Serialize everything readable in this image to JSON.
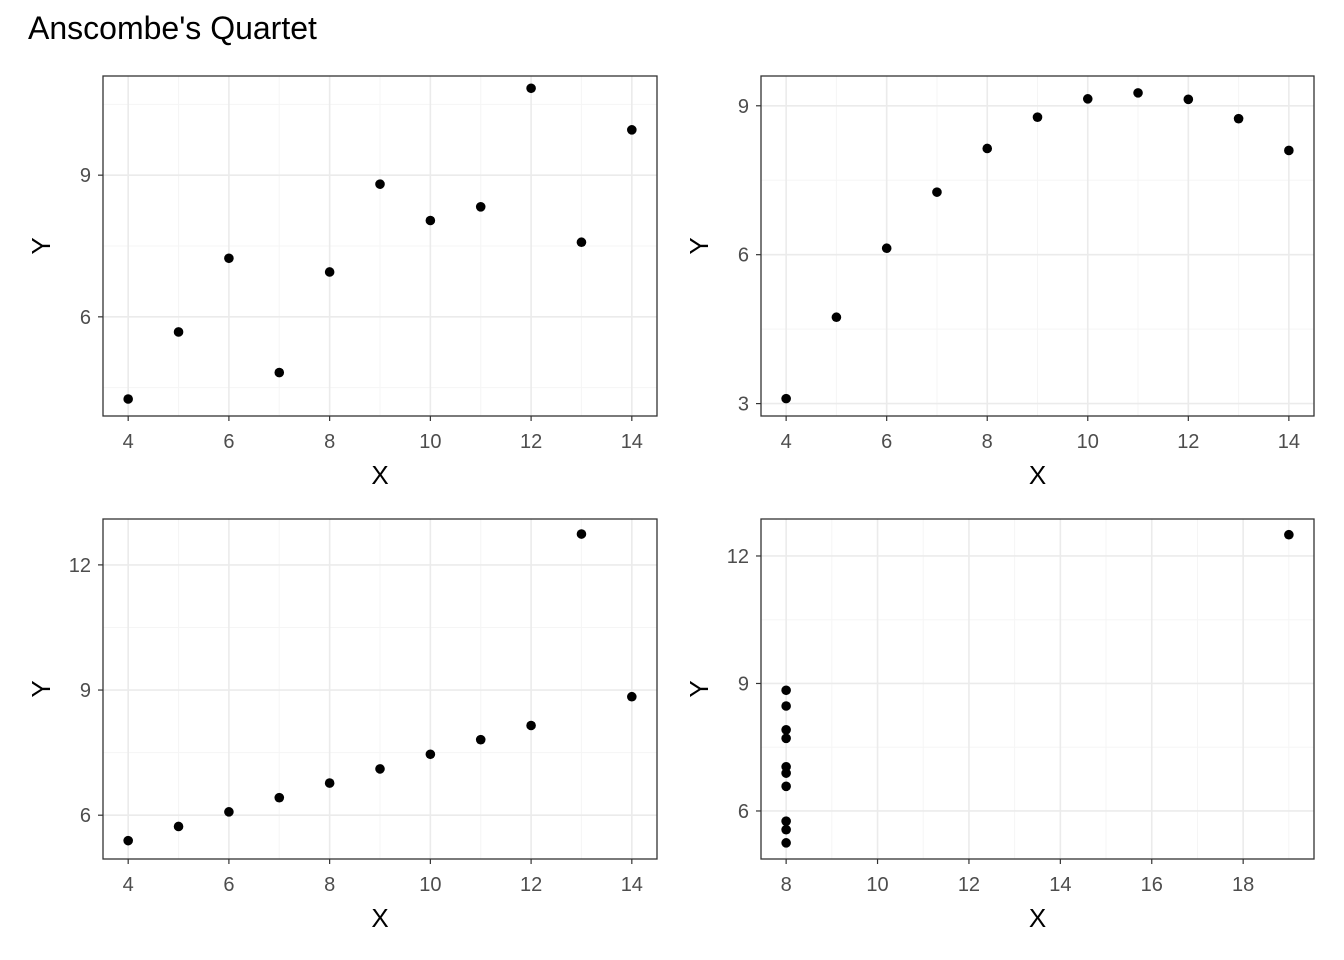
{
  "figure": {
    "title": "Anscombe's Quartet"
  },
  "colors": {
    "point": "#000000",
    "panel_border": "#333333",
    "grid_major": "#ebebeb",
    "grid_minor": "#f5f5f5",
    "tick_text": "#4d4d4d",
    "background": "#ffffff"
  },
  "chart_data": [
    {
      "type": "scatter",
      "title": "",
      "xlabel": "X",
      "ylabel": "Y",
      "xlim": [
        3.5,
        14.5
      ],
      "ylim": [
        3.9,
        11.1
      ],
      "xticks": [
        4,
        6,
        8,
        10,
        12,
        14
      ],
      "yticks": [
        6,
        9
      ],
      "grid": true,
      "x": [
        10,
        8,
        13,
        9,
        11,
        14,
        6,
        4,
        12,
        7,
        5
      ],
      "y": [
        8.04,
        6.95,
        7.58,
        8.81,
        8.33,
        9.96,
        7.24,
        4.26,
        10.84,
        4.82,
        5.68
      ]
    },
    {
      "type": "scatter",
      "title": "",
      "xlabel": "X",
      "ylabel": "Y",
      "xlim": [
        3.5,
        14.5
      ],
      "ylim": [
        2.75,
        9.6
      ],
      "xticks": [
        4,
        6,
        8,
        10,
        12,
        14
      ],
      "yticks": [
        3,
        6,
        9
      ],
      "grid": true,
      "x": [
        10,
        8,
        13,
        9,
        11,
        14,
        6,
        4,
        12,
        7,
        5
      ],
      "y": [
        9.14,
        8.14,
        8.74,
        8.77,
        9.26,
        8.1,
        6.13,
        3.1,
        9.13,
        7.26,
        4.74
      ]
    },
    {
      "type": "scatter",
      "title": "",
      "xlabel": "X",
      "ylabel": "Y",
      "xlim": [
        3.5,
        14.5
      ],
      "ylim": [
        4.95,
        13.1
      ],
      "xticks": [
        4,
        6,
        8,
        10,
        12,
        14
      ],
      "yticks": [
        6,
        9,
        12
      ],
      "grid": true,
      "x": [
        10,
        8,
        13,
        9,
        11,
        14,
        6,
        4,
        12,
        7,
        5
      ],
      "y": [
        7.46,
        6.77,
        12.74,
        7.11,
        7.81,
        8.84,
        6.08,
        5.39,
        8.15,
        6.42,
        5.73
      ]
    },
    {
      "type": "scatter",
      "title": "",
      "xlabel": "X",
      "ylabel": "Y",
      "xlim": [
        7.45,
        19.55
      ],
      "ylim": [
        4.87,
        12.87
      ],
      "xticks": [
        8,
        10,
        12,
        14,
        16,
        18
      ],
      "yticks": [
        6,
        9,
        12
      ],
      "grid": true,
      "x": [
        8,
        8,
        8,
        8,
        8,
        8,
        8,
        19,
        8,
        8,
        8
      ],
      "y": [
        6.58,
        5.76,
        7.71,
        8.84,
        8.47,
        7.04,
        5.25,
        12.5,
        5.56,
        7.91,
        6.89
      ]
    }
  ]
}
